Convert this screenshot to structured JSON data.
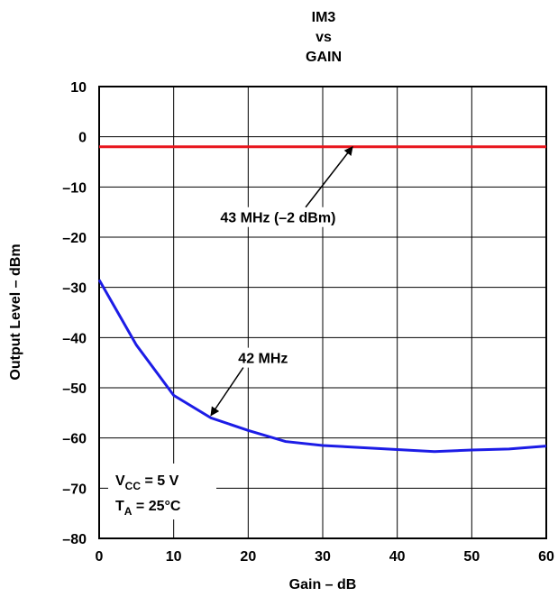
{
  "chart_data": {
    "type": "line",
    "title_lines": [
      "IM3",
      "vs",
      "GAIN"
    ],
    "xlabel": "Gain – dB",
    "ylabel": "Output Level – dBm",
    "xlim": [
      0,
      60
    ],
    "ylim": [
      -80,
      10
    ],
    "x_ticks": [
      "0",
      "10",
      "20",
      "30",
      "40",
      "50",
      "60"
    ],
    "y_ticks": [
      "10",
      "0",
      "–10",
      "–20",
      "–30",
      "–40",
      "–50",
      "–60",
      "–70",
      "–80"
    ],
    "grid": true,
    "series": [
      {
        "name": "43 MHz (–2 dBm)",
        "color": "#e8141b",
        "x": [
          0,
          60
        ],
        "y": [
          -2,
          -2
        ]
      },
      {
        "name": "42 MHz",
        "color": "#1c1ce6",
        "x": [
          0,
          5,
          10,
          15,
          20,
          25,
          30,
          35,
          40,
          45,
          50,
          55,
          60
        ],
        "y": [
          -28.5,
          -41.5,
          -51.5,
          -56,
          -58.5,
          -60.7,
          -61.5,
          -61.9,
          -62.3,
          -62.7,
          -62.4,
          -62.2,
          -61.6
        ]
      }
    ],
    "annotations": [
      {
        "text": "43 MHz (–2 dBm)",
        "x_text": 24,
        "y_text": -16,
        "x_arrow": 34,
        "y_arrow": -2
      },
      {
        "text": "42 MHz",
        "x_text": 22,
        "y_text": -44,
        "x_arrow": 15,
        "y_arrow": -55.5
      }
    ],
    "conditions": {
      "vcc_main": "V",
      "vcc_sub": "CC",
      "vcc_value": " = 5 V",
      "ta_main": "T",
      "ta_sub": "A",
      "ta_value": " = 25°C"
    }
  }
}
